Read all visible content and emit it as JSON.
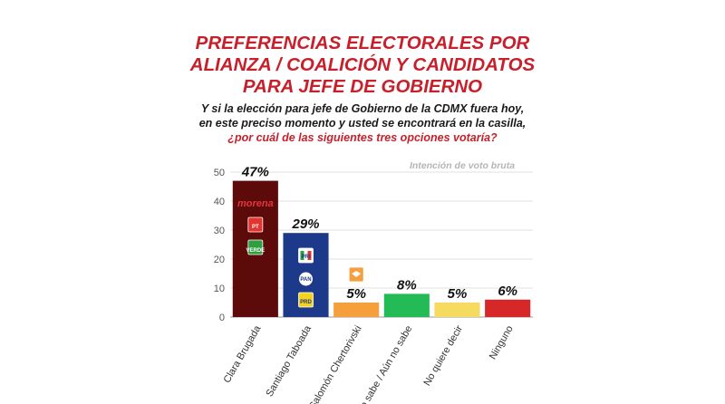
{
  "title_lines": [
    "PREFERENCIAS ELECTORALES POR",
    "ALIANZA / COALICIÓN Y CANDIDATOS",
    "PARA JEFE DE GOBIERNO"
  ],
  "question_lines": [
    "Y si la elección para jefe de Gobierno de la CDMX fuera hoy,",
    "en este preciso momento y usted se encontrará en la casilla,",
    "¿por cuál de las siguientes tres opciones votaría?"
  ],
  "chart_data": {
    "type": "bar",
    "note": "Intención de voto bruta",
    "categories": [
      "Clara Brugada",
      "Santiago Taboada",
      "Salomón Chertorivski",
      "No sabe / Aún no sabe",
      "No quiere decir",
      "Ninguno"
    ],
    "values": [
      47,
      29,
      5,
      8,
      5,
      6
    ],
    "value_labels": [
      "47%",
      "29%",
      "5%",
      "8%",
      "5%",
      "6%"
    ],
    "colors": [
      "#5c0a0a",
      "#1d3a8a",
      "#f5a03c",
      "#22bb55",
      "#f5dc60",
      "#d62828"
    ],
    "ylim": [
      0,
      50
    ],
    "yticks": [
      0,
      10,
      20,
      30,
      40,
      50
    ],
    "grid": true,
    "party_logos": {
      "Clara Brugada": [
        "morena",
        "PT",
        "VERDE"
      ],
      "Santiago Taboada": [
        "PRI",
        "PAN",
        "PRD"
      ],
      "Salomón Chertorivski": [
        "MC"
      ]
    }
  }
}
